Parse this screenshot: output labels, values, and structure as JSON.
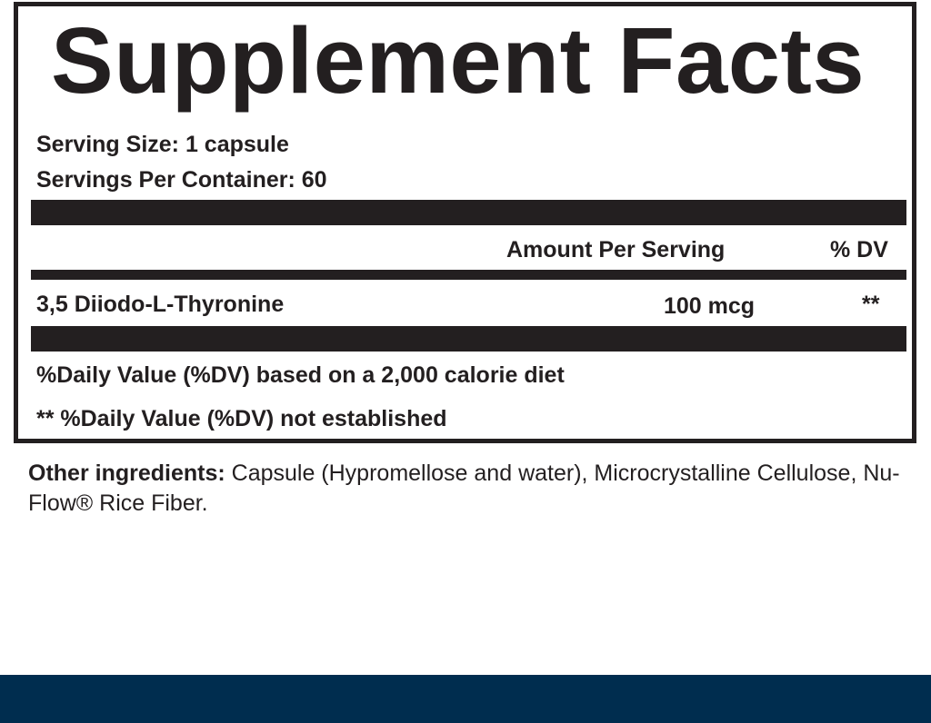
{
  "title": "Supplement Facts",
  "serving_size": "Serving Size: 1 capsule",
  "servings_per_container": "Servings Per Container: 60",
  "header": {
    "amount": "Amount Per Serving",
    "dv": "% DV"
  },
  "ingredients": [
    {
      "name": "3,5 Diiodo-L-Thyronine",
      "amount": "100 mcg",
      "dv": "**"
    }
  ],
  "footnotes": [
    "%Daily Value (%DV) based on a 2,000 calorie diet",
    "** %Daily Value (%DV) not established"
  ],
  "other_ingredients": {
    "label": "Other ingredients:",
    "text": " Capsule (Hypromellose and water), Microcrystalline Cellulose, Nu-Flow® Rice Fiber."
  },
  "colors": {
    "ink": "#231f20",
    "band": "#002d4f"
  }
}
